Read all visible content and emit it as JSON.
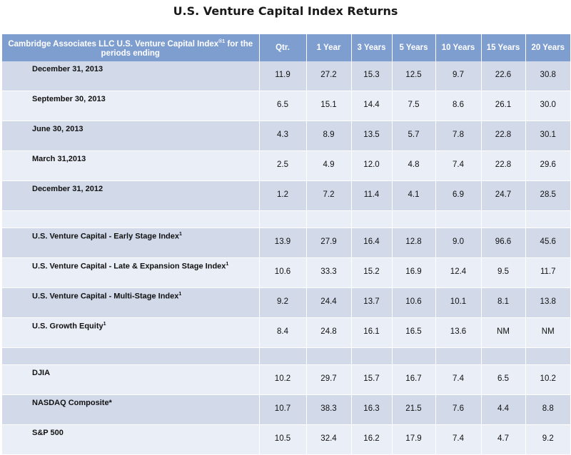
{
  "title": "U.S. Venture Capital Index Returns",
  "table": {
    "header": {
      "label_main": "Cambridge Associates LLC U.S. Venture Capital Index",
      "label_sup": "®1",
      "label_tail": " for the periods ending",
      "columns": [
        "Qtr.",
        "1 Year",
        "3 Years",
        "5 Years",
        "10 Years",
        "15 Years",
        "20 Years"
      ]
    },
    "periods": [
      {
        "label": "December 31, 2013",
        "values": [
          "11.9",
          "27.2",
          "15.3",
          "12.5",
          "9.7",
          "22.6",
          "30.8"
        ]
      },
      {
        "label": "September 30, 2013",
        "values": [
          "6.5",
          "15.1",
          "14.4",
          "7.5",
          "8.6",
          "26.1",
          "30.0"
        ]
      },
      {
        "label": "June 30, 2013",
        "values": [
          "4.3",
          "8.9",
          "13.5",
          "5.7",
          "7.8",
          "22.8",
          "30.1"
        ]
      },
      {
        "label": "March 31,2013",
        "values": [
          "2.5",
          "4.9",
          "12.0",
          "4.8",
          "7.4",
          "22.8",
          "29.6"
        ]
      },
      {
        "label": "December 31, 2012",
        "values": [
          "1.2",
          "7.2",
          "11.4",
          "4.1",
          "6.9",
          "24.7",
          "28.5"
        ]
      }
    ],
    "indices": [
      {
        "label": "U.S. Venture Capital  - Early Stage Index",
        "sup": "1",
        "values": [
          "13.9",
          "27.9",
          "16.4",
          "12.8",
          "9.0",
          "96.6",
          "45.6"
        ]
      },
      {
        "label": "U.S. Venture Capital - Late & Expansion Stage Index",
        "sup": "1",
        "values": [
          "10.6",
          "33.3",
          "15.2",
          "16.9",
          "12.4",
          "9.5",
          "11.7"
        ]
      },
      {
        "label": "U.S. Venture Capital - Multi-Stage Index",
        "sup": "1",
        "values": [
          "9.2",
          "24.4",
          "13.7",
          "10.6",
          "10.1",
          "8.1",
          "13.8"
        ]
      },
      {
        "label": "U.S. Growth Equity",
        "sup": "1",
        "values": [
          "8.4",
          "24.8",
          "16.1",
          "16.5",
          "13.6",
          "NM",
          "NM"
        ]
      }
    ],
    "benchmarks": [
      {
        "label": "DJIA",
        "values": [
          "10.2",
          "29.7",
          "15.7",
          "16.7",
          "7.4",
          "6.5",
          "10.2"
        ]
      },
      {
        "label": "NASDAQ Composite*",
        "values": [
          "10.7",
          "38.3",
          "16.3",
          "21.5",
          "7.6",
          "4.4",
          "8.8"
        ]
      },
      {
        "label": "S&P 500",
        "values": [
          "10.5",
          "32.4",
          "16.2",
          "17.9",
          "7.4",
          "4.7",
          "9.2"
        ]
      }
    ]
  }
}
